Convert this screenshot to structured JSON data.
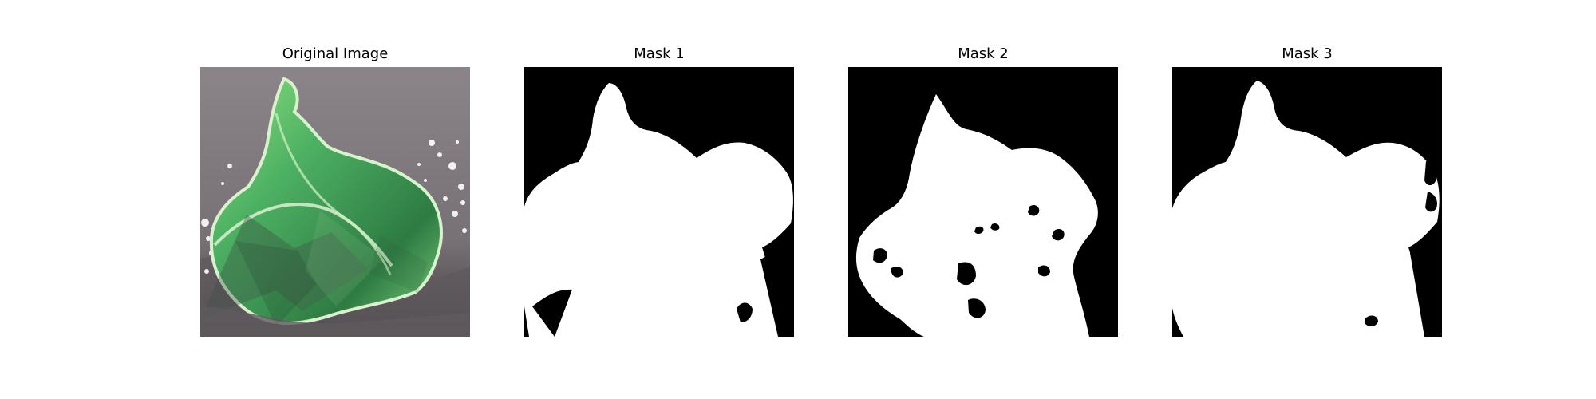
{
  "figure": {
    "background_color": "#ffffff",
    "panels": [
      {
        "title": "Original Image"
      },
      {
        "title": "Mask 1"
      },
      {
        "title": "Mask 2"
      },
      {
        "title": "Mask 3"
      }
    ]
  },
  "colors": {
    "mask_background": "#000000",
    "mask_foreground": "#ffffff",
    "photo_background": "#8f8a8e",
    "photo_shadow": "#4b474b",
    "leaf_dark": "#2f7d45",
    "leaf_mid": "#3f9c58",
    "leaf_light": "#90d87e",
    "leaf_edge": "#c7ebc0"
  }
}
